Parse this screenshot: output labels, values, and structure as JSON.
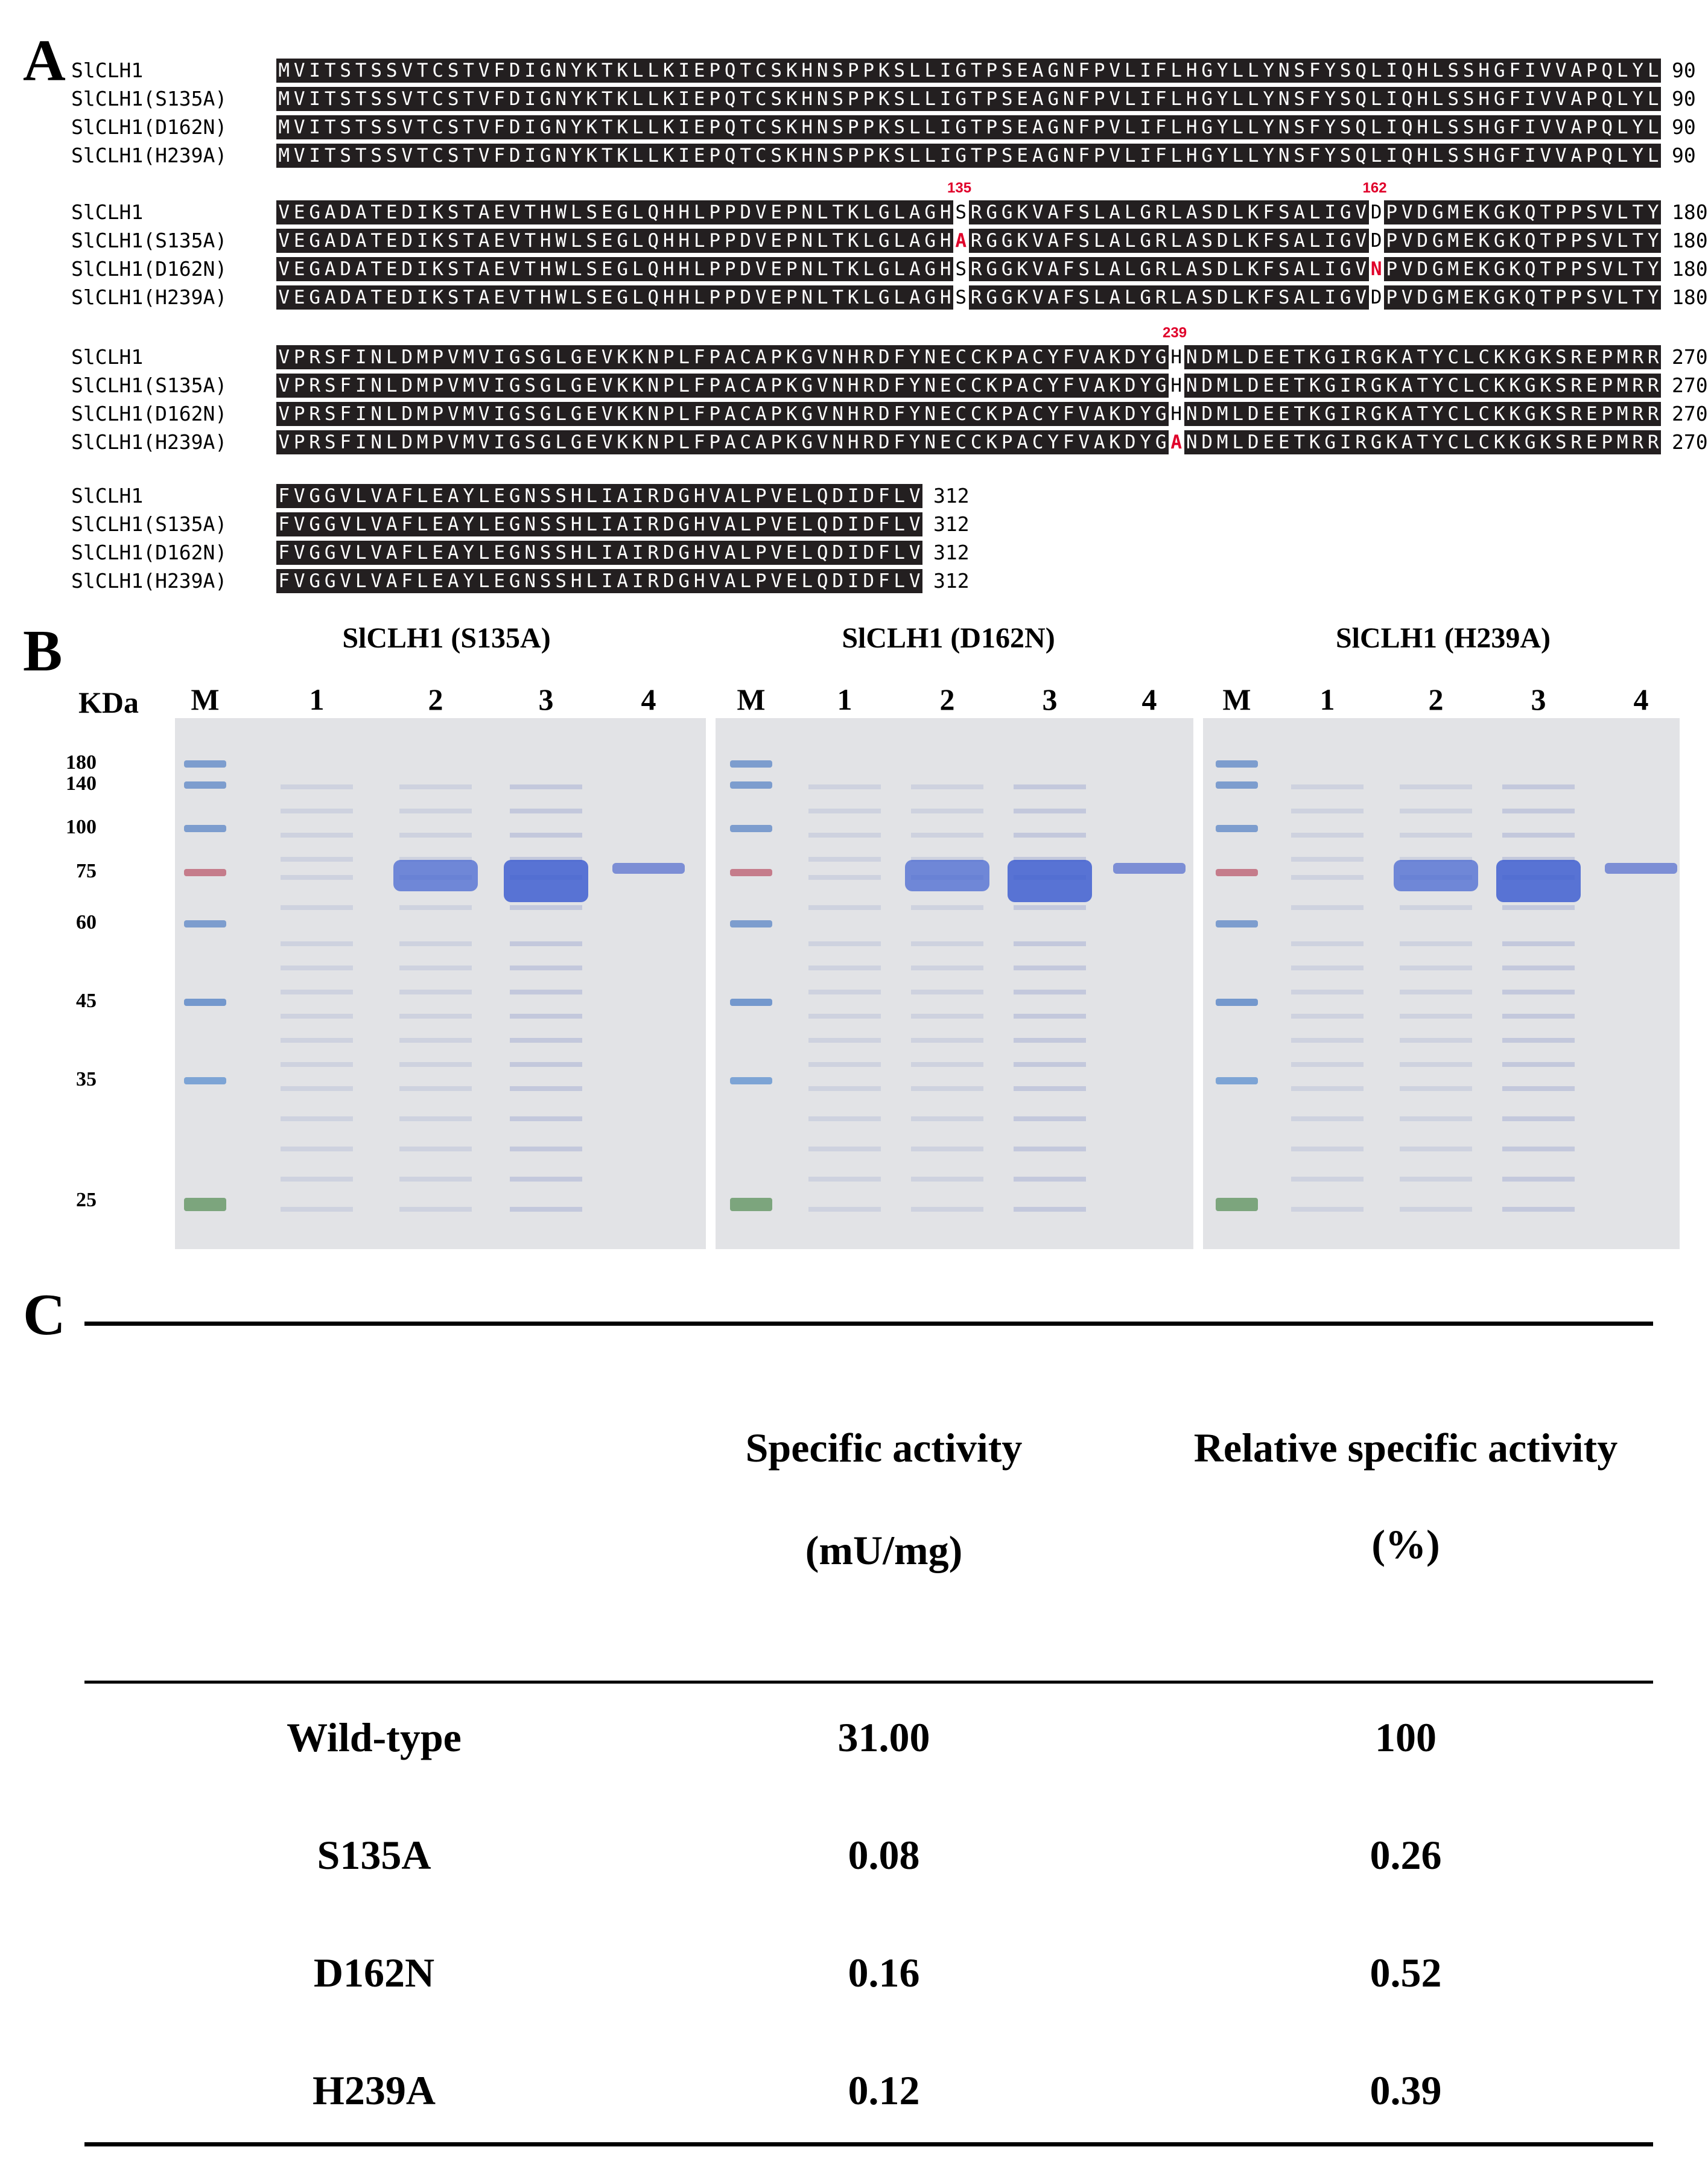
{
  "panel_labels": {
    "a": "A",
    "b": "B",
    "c": "C"
  },
  "alignment": {
    "names": [
      "SlCLH1",
      "SlCLH1(S135A)",
      "SlCLH1(D162N)",
      "SlCLH1(H239A)"
    ],
    "blocks": [
      {
        "end": "90",
        "seq": "MVITSTSSVTCSTVFDIGNYKTKLLKIEPQTCSKHNSPPKSLLIGTPSEAGNFPVLIFLHGYLLYNSFYSQLIQHLSSHGFIVVAPQLYL",
        "site": null
      },
      {
        "end": "180",
        "seq": "VEGADATEDIKSTAEVTHWLSEGLQHHLPPDVEPNLTKLGLAGHSRGGKVAFSLALGRLASDLKFSALIGVDPVDGMEKGKQTPPSVLTY",
        "sites": [
          {
            "label": "135",
            "pos": 44,
            "wt": "S",
            "mut_row": 1,
            "mut": "A"
          },
          {
            "label": "162",
            "pos": 71,
            "wt": "D",
            "mut_row": 2,
            "mut": "N"
          }
        ]
      },
      {
        "end": "270",
        "seq": "VPRSFINLDMPVMVIGSGLGEVKKNPLFPACAPKGVNHRDFYNECCKPACYFVAKDYGHNDMLDEETKGIRGKATYCLCKKGKSREPMRR",
        "sites": [
          {
            "label": "239",
            "pos": 58,
            "wt": "H",
            "mut_row": 3,
            "mut": "A"
          }
        ]
      },
      {
        "end": "312",
        "seq": "FVGGVLVAFLEAYLEGNSSHLIAIRDGHVALPVELQDIDFLV",
        "site": null
      }
    ]
  },
  "gels": {
    "kda_label": "KDa",
    "markers": [
      "180",
      "140",
      "100",
      "75",
      "60",
      "45",
      "35",
      "25"
    ],
    "panels": [
      {
        "title": "SlCLH1 (S135A)",
        "lanes": [
          "M",
          "1",
          "2",
          "3",
          "4"
        ]
      },
      {
        "title": "SlCLH1 (D162N)",
        "lanes": [
          "M",
          "1",
          "2",
          "3",
          "4"
        ]
      },
      {
        "title": "SlCLH1 (H239A)",
        "lanes": [
          "M",
          "1",
          "2",
          "3",
          "4"
        ]
      }
    ]
  },
  "table": {
    "headers": {
      "specific_activity": "Specific activity",
      "specific_activity_unit": "(mU/mg)",
      "relative_activity": "Relative specific activity",
      "relative_activity_unit": "(%)"
    },
    "rows": [
      {
        "name": "Wild-type",
        "specific": "31.00",
        "relative": "100"
      },
      {
        "name": "S135A",
        "specific": "0.08",
        "relative": "0.26"
      },
      {
        "name": "D162N",
        "specific": "0.16",
        "relative": "0.52"
      },
      {
        "name": "H239A",
        "specific": "0.12",
        "relative": "0.39"
      }
    ]
  }
}
